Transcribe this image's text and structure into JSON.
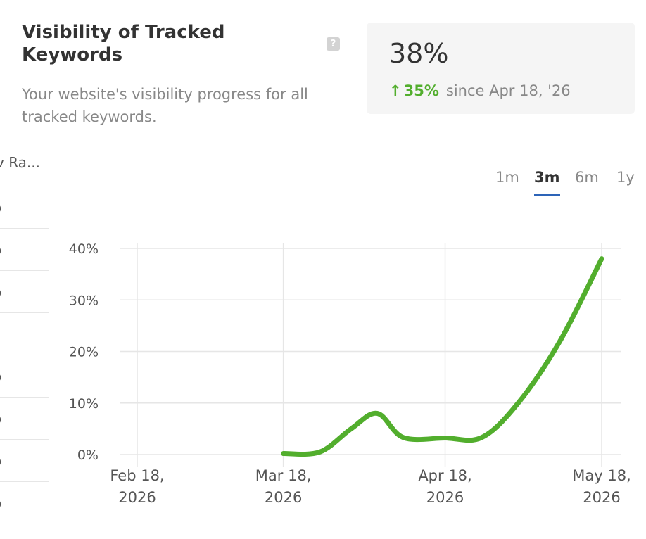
{
  "left_table": {
    "header": "v Ra...",
    "cells": [
      "o",
      "o",
      "o",
      "",
      "o",
      "o",
      "o",
      "o"
    ]
  },
  "header": {
    "title": "Visibility of Tracked Keywords",
    "help_glyph": "?",
    "subtitle": "Your website's visibility progress for all tracked keywords."
  },
  "stat": {
    "value": "38%",
    "arrow": "↑",
    "change": "35%",
    "since": "since Apr 18, '26"
  },
  "tabs": [
    {
      "label": "1m",
      "active": false
    },
    {
      "label": "3m",
      "active": true
    },
    {
      "label": "6m",
      "active": false
    },
    {
      "label": "1y",
      "active": false
    }
  ],
  "colors": {
    "line": "#52ae2d",
    "accent": "#2d64b8",
    "grid": "#e6e6e6"
  },
  "chart_data": {
    "type": "line",
    "ylim": [
      0,
      40
    ],
    "yticks": [
      "0%",
      "10%",
      "20%",
      "30%",
      "40%"
    ],
    "xticks": [
      {
        "date": "2026-02-18",
        "l1": "Feb 18,",
        "l2": "2026"
      },
      {
        "date": "2026-03-18",
        "l1": "Mar 18,",
        "l2": "2026"
      },
      {
        "date": "2026-04-18",
        "l1": "Apr 18,",
        "l2": "2026"
      },
      {
        "date": "2026-05-18",
        "l1": "May 18,",
        "l2": "2026"
      }
    ],
    "series": [
      {
        "points": [
          {
            "x": "2026-03-18",
            "y": 0.2
          },
          {
            "x": "2026-03-25",
            "y": 0.5
          },
          {
            "x": "2026-03-31",
            "y": 5
          },
          {
            "x": "2026-04-05",
            "y": 8
          },
          {
            "x": "2026-04-10",
            "y": 3.3
          },
          {
            "x": "2026-04-18",
            "y": 3.2
          },
          {
            "x": "2026-04-25",
            "y": 3.3
          },
          {
            "x": "2026-05-02",
            "y": 10
          },
          {
            "x": "2026-05-10",
            "y": 22
          },
          {
            "x": "2026-05-18",
            "y": 38
          }
        ]
      }
    ]
  }
}
